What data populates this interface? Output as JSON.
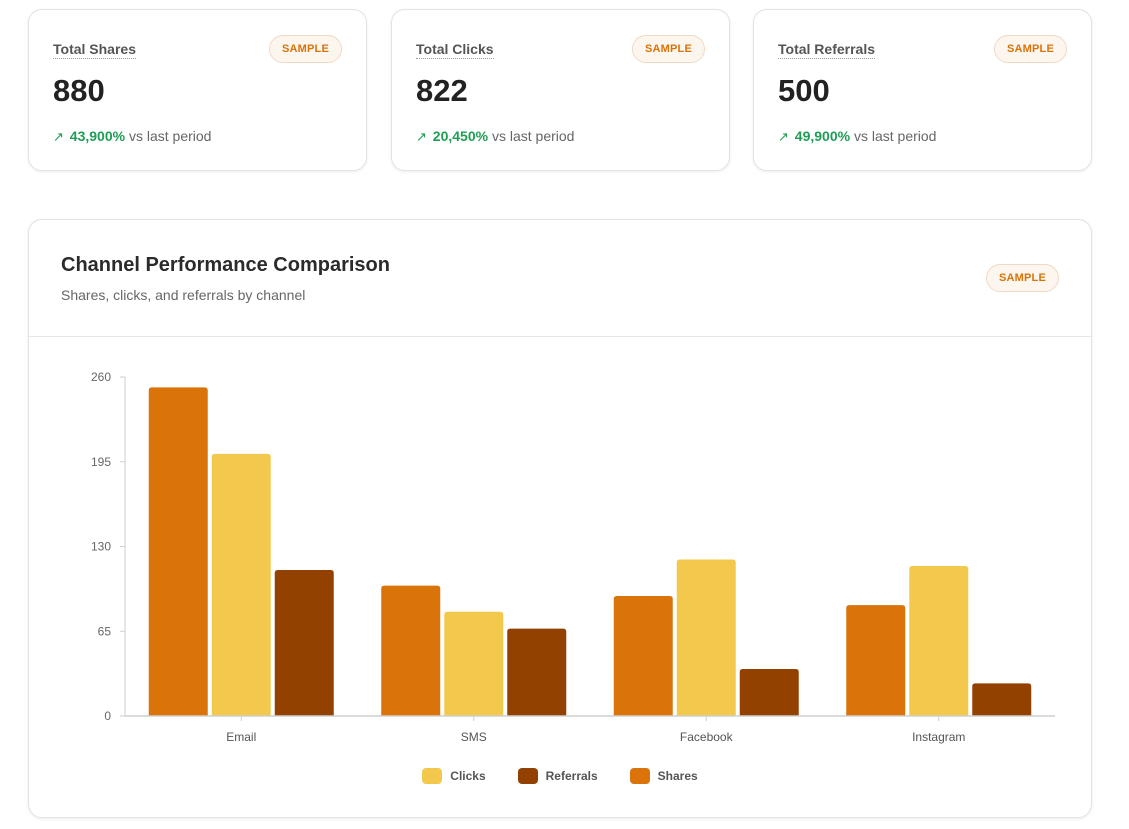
{
  "kpis": [
    {
      "label": "Total Shares",
      "value": "880",
      "delta": "43,900%",
      "delta_suffix": "vs last period",
      "badge": "SAMPLE",
      "arrow_icon": "trend-up-icon"
    },
    {
      "label": "Total Clicks",
      "value": "822",
      "delta": "20,450%",
      "delta_suffix": "vs last period",
      "badge": "SAMPLE",
      "arrow_icon": "trend-up-icon"
    },
    {
      "label": "Total Referrals",
      "value": "500",
      "delta": "49,900%",
      "delta_suffix": "vs last period",
      "badge": "SAMPLE",
      "arrow_icon": "trend-up-icon"
    }
  ],
  "chart_card": {
    "title": "Channel Performance Comparison",
    "subtitle": "Shares, clicks, and referrals by channel",
    "badge": "SAMPLE"
  },
  "colors": {
    "shares": "#d9730a",
    "clicks": "#f2c94c",
    "referrals": "#934100",
    "positive": "#1f9d55",
    "badge_text": "#d9730a"
  },
  "chart_data": {
    "type": "bar",
    "categories": [
      "Email",
      "SMS",
      "Facebook",
      "Instagram"
    ],
    "series": [
      {
        "name": "Shares",
        "key": "shares",
        "values": [
          252,
          100,
          92,
          85
        ]
      },
      {
        "name": "Clicks",
        "key": "clicks",
        "values": [
          201,
          80,
          120,
          115
        ]
      },
      {
        "name": "Referrals",
        "key": "referrals",
        "values": [
          112,
          67,
          36,
          25
        ]
      }
    ],
    "legend": [
      {
        "name": "Clicks",
        "key": "clicks"
      },
      {
        "name": "Referrals",
        "key": "referrals"
      },
      {
        "name": "Shares",
        "key": "shares"
      }
    ],
    "yticks": [
      0,
      65,
      130,
      195,
      260
    ],
    "ylim": [
      0,
      260
    ],
    "xlabel": "",
    "ylabel": "",
    "grid": false,
    "legend_position": "bottom"
  }
}
